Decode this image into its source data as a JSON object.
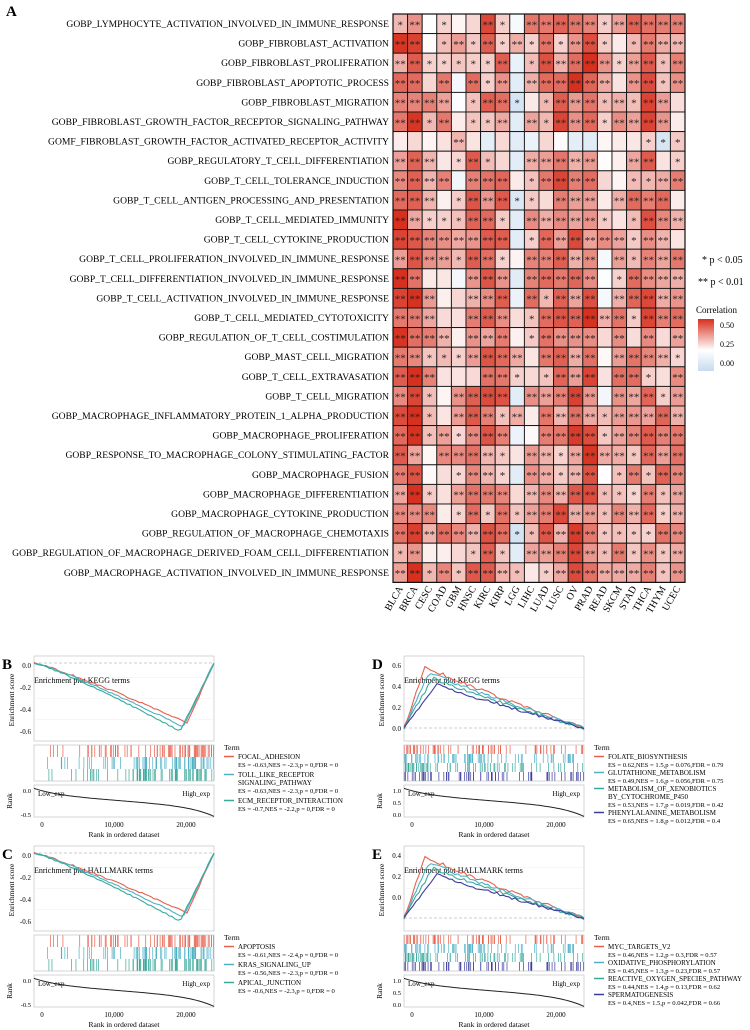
{
  "panel_a": {
    "label": "A",
    "cancers": [
      "BLCA",
      "BRCA",
      "CESC",
      "COAD",
      "GBM",
      "HNSC",
      "KIRC",
      "KIRP",
      "LGG",
      "LIHC",
      "LUAD",
      "LUSC",
      "OV",
      "PRAD",
      "READ",
      "SKCM",
      "STAD",
      "THCA",
      "THYM",
      "UCEC"
    ],
    "terms": [
      "GOBP_LYMPHOCYTE_ACTIVATION_INVOLVED_IN_IMMUNE_RESPONSE",
      "GOBP_FIBROBLAST_ACTIVATION",
      "GOBP_FIBROBLAST_PROLIFERATION",
      "GOBP_FIBROBLAST_APOPTOTIC_PROCESS",
      "GOBP_FIBROBLAST_MIGRATION",
      "GOBP_FIBROBLAST_GROWTH_FACTOR_RECEPTOR_SIGNALING_PATHWAY",
      "GOMF_FIBROBLAST_GROWTH_FACTOR_ACTIVATED_RECEPTOR_ACTIVITY",
      "GOBP_REGULATORY_T_CELL_DIFFERENTIATION",
      "GOBP_T_CELL_TOLERANCE_INDUCTION",
      "GOBP_T_CELL_ANTIGEN_PROCESSING_AND_PRESENTATION",
      "GOBP_T_CELL_MEDIATED_IMMUNITY",
      "GOBP_T_CELL_CYTOKINE_PRODUCTION",
      "GOBP_T_CELL_PROLIFERATION_INVOLVED_IN_IMMUNE_RESPONSE",
      "GOBP_T_CELL_DIFFERENTIATION_INVOLVED_IN_IMMUNE_RESPONSE",
      "GOBP_T_CELL_ACTIVATION_INVOLVED_IN_IMMUNE_RESPONSE",
      "GOBP_T_CELL_MEDIATED_CYTOTOXICITY",
      "GOBP_REGULATION_OF_T_CELL_COSTIMULATION",
      "GOBP_MAST_CELL_MIGRATION",
      "GOBP_T_CELL_EXTRAVASATION",
      "GOBP_T_CELL_MIGRATION",
      "GOBP_MACROPHAGE_INFLAMMATORY_PROTEIN_1_ALPHA_PRODUCTION",
      "GOBP_MACROPHAGE_PROLIFERATION",
      "GOBP_RESPONSE_TO_MACROPHAGE_COLONY_STIMULATING_FACTOR",
      "GOBP_MACROPHAGE_FUSION",
      "GOBP_MACROPHAGE_DIFFERENTIATION",
      "GOBP_MACROPHAGE_CYTOKINE_PRODUCTION",
      "GOBP_REGULATION_OF_MACROPHAGE_CHEMOTAXIS",
      "GOBP_REGULATION_OF_MACROPHAGE_DERIVED_FOAM_CELL_DIFFERENTIATION",
      "GOBP_MACROPHAGE_ACTIVATION_INVOLVED_IN_IMMUNE_RESPONSE"
    ],
    "sig_legend": {
      "one": "* p < 0.05",
      "two": "** p < 0.01"
    },
    "colorbar": {
      "title": "Correlation",
      "ticks": [
        "0.50",
        "0.25",
        "0.00"
      ],
      "high": "#d7301f",
      "mid": "#ffffff",
      "low": "#c6dbef"
    }
  },
  "panel_b": {
    "label": "B",
    "title": "Enrichment plot KEGG terms",
    "legend_title": "Term",
    "yticks": [
      "0.0",
      "-0.2",
      "-0.4",
      "-0.6"
    ],
    "terms": [
      {
        "name": "FOCAL_ADHESION",
        "stats": "ES = -0.63,NES = -2.3,p = 0,FDR = 0",
        "color": "#e8604c"
      },
      {
        "name": "TOLL_LIKE_RECEPTOR\nSIGNALING_PATHWAY",
        "stats": "ES = -0.63,NES = -2.3,p = 0,FDR = 0",
        "color": "#4fb0c6"
      },
      {
        "name": "ECM_RECEPTOR_INTERACTION",
        "stats": "ES = -0.7,NES = -2.2,p = 0,FDR = 0",
        "color": "#3aa99a"
      }
    ]
  },
  "panel_c": {
    "label": "C",
    "title": "Enrichment plot HALLMARK terms",
    "legend_title": "Term",
    "yticks": [
      "0.0",
      "-0.2",
      "-0.4",
      "-0.6"
    ],
    "terms": [
      {
        "name": "APOPTOSIS",
        "stats": "ES = -0.61,NES = -2.4,p = 0,FDR = 0",
        "color": "#e8604c"
      },
      {
        "name": "KRAS_SIGNALING_UP",
        "stats": "ES = -0.56,NES = -2.3,p = 0,FDR = 0",
        "color": "#4fb0c6"
      },
      {
        "name": "APICAL_JUNCTION",
        "stats": "ES = -0.6,NES = -2.3,p = 0,FDR = 0",
        "color": "#3aa99a"
      }
    ]
  },
  "panel_d": {
    "label": "D",
    "title": "Enrichment plot KEGG terms",
    "legend_title": "Term",
    "yticks": [
      "0.6",
      "0.4",
      "0.2",
      "0.0"
    ],
    "terms": [
      {
        "name": "FOLATE_BIOSYNTHESIS",
        "stats": "ES = 0.62,NES = 1.5,p = 0.076,FDR = 0.79",
        "color": "#e8604c"
      },
      {
        "name": "GLUTATHIONE_METABOLISM",
        "stats": "ES = 0.49,NES = 1.6,p = 0.056,FDR = 0.75",
        "color": "#4fb0c6"
      },
      {
        "name": "METABOLISM_OF_XENOBIOTICS\nBY_CYTOCHROME_P450",
        "stats": "ES = 0.53,NES = 1.7,p = 0.019,FDR = 0.42",
        "color": "#3aa99a"
      },
      {
        "name": "PHENYLALANINE_METABOLISM",
        "stats": "ES = 0.65,NES = 1.8,p = 0.012,FDR = 0.4",
        "color": "#3d3d9e"
      }
    ]
  },
  "panel_e": {
    "label": "E",
    "title": "Enrichment plot HALLMARK terms",
    "legend_title": "Term",
    "yticks": [
      "0.4",
      "0.2",
      "0.0"
    ],
    "terms": [
      {
        "name": "MYC_TARGETS_V2",
        "stats": "ES = 0.46,NES = 1.2,p = 0.3,FDR = 0.57",
        "color": "#e8604c"
      },
      {
        "name": "OXIDATIVE_PHOSPHORYLATION",
        "stats": "ES = 0.45,NES = 1.3,p = 0.23,FDR = 0.57",
        "color": "#4fb0c6"
      },
      {
        "name": "REACTIVE_OXYGEN_SPECIES_PATHWAY",
        "stats": "ES = 0.44,NES = 1.4,p = 0.13,FDR = 0.62",
        "color": "#3aa99a"
      },
      {
        "name": "SPERMATOGENESIS",
        "stats": "ES = 0.4,NES = 1.5,p = 0.042,FDR = 0.66",
        "color": "#3d3d9e"
      }
    ]
  },
  "gsea_common": {
    "ylabel": "Enrichment score",
    "rank_label": "Rank",
    "xlabel": "Rank in ordered dataset",
    "xticks": [
      "0",
      "10,000",
      "20,000"
    ],
    "low": "Low_exp",
    "high": "High_exp",
    "rank_yticks_neg": [
      "0.0",
      "-0.5"
    ],
    "rank_yticks_pos": [
      "1.0",
      "0.5",
      "0.0"
    ]
  }
}
